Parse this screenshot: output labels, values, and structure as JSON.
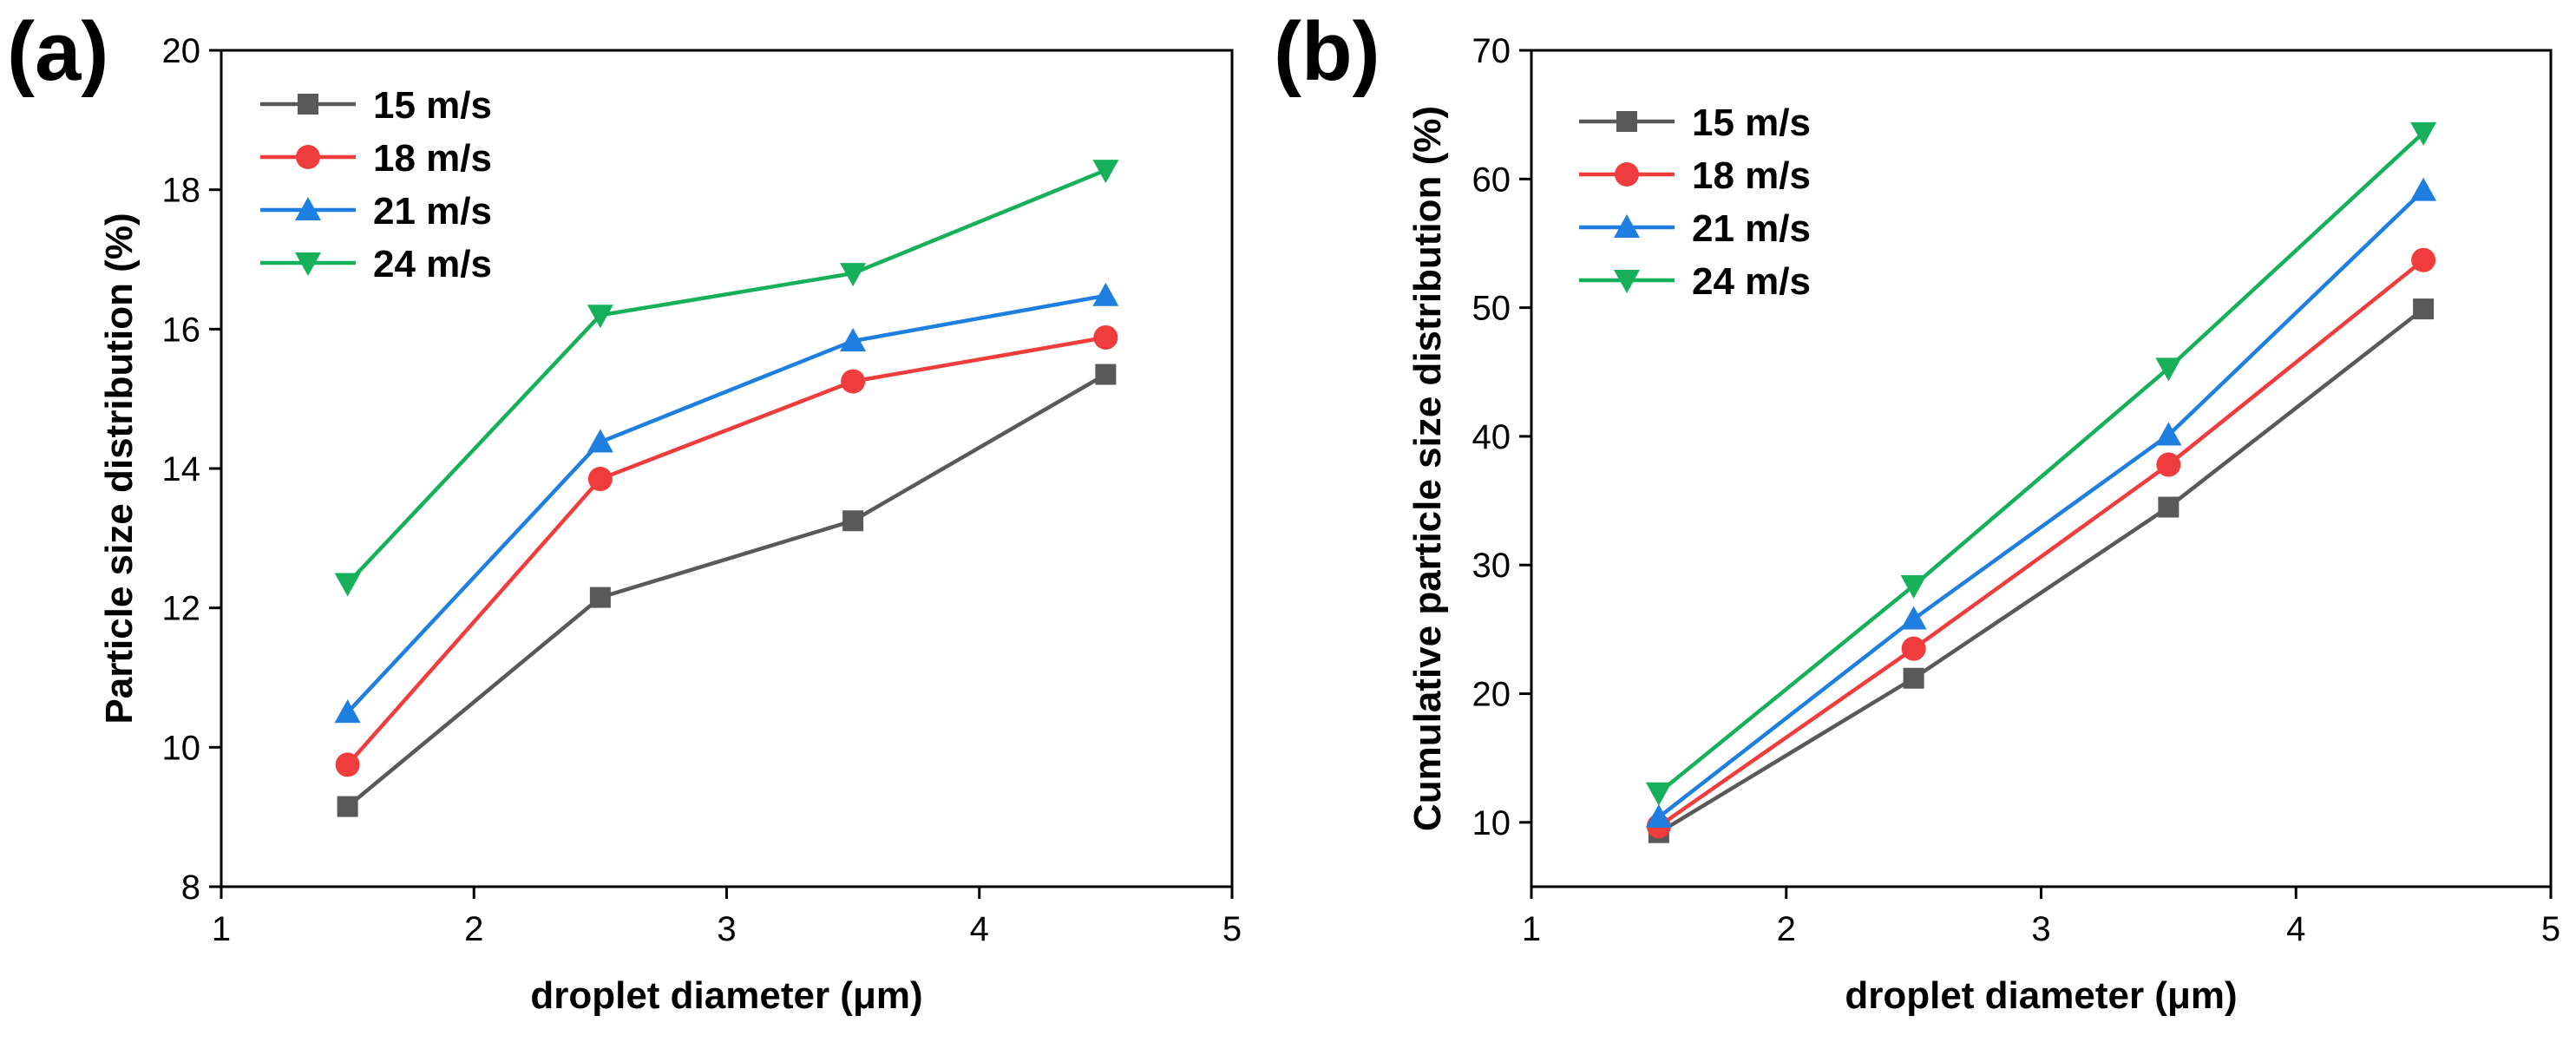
{
  "chart_data": [
    {
      "type": "line",
      "panel_label": "(a)",
      "xlabel": "droplet diameter (μm)",
      "ylabel": "Particle size distribution (%)",
      "xlim": [
        1,
        5
      ],
      "ylim": [
        8,
        20
      ],
      "xticks": [
        1,
        2,
        3,
        4,
        5
      ],
      "yticks": [
        8,
        10,
        12,
        14,
        16,
        18,
        20
      ],
      "legend_position": "top-left",
      "grid": false,
      "x": [
        1.5,
        2.5,
        3.5,
        4.5
      ],
      "series": [
        {
          "name": "15 m/s",
          "color": "#595959",
          "marker": "square",
          "values": [
            9.15,
            12.15,
            13.25,
            15.35
          ]
        },
        {
          "name": "18 m/s",
          "color": "#f03c3c",
          "marker": "circle",
          "values": [
            9.75,
            13.85,
            15.25,
            15.88
          ]
        },
        {
          "name": "21 m/s",
          "color": "#1e7fe0",
          "marker": "triangle-up",
          "values": [
            10.5,
            14.38,
            15.83,
            16.48
          ]
        },
        {
          "name": "24 m/s",
          "color": "#16b05a",
          "marker": "triangle-down",
          "values": [
            12.35,
            16.2,
            16.8,
            18.28
          ]
        }
      ]
    },
    {
      "type": "line",
      "panel_label": "(b)",
      "xlabel": "droplet diameter (μm)",
      "ylabel": "Cumulative particle size distribution (%)",
      "xlim": [
        1,
        5
      ],
      "ylim": [
        5,
        70
      ],
      "xticks": [
        1,
        2,
        3,
        4,
        5
      ],
      "yticks": [
        10,
        20,
        30,
        40,
        50,
        60,
        70
      ],
      "legend_position": "top-left",
      "grid": false,
      "x": [
        1.5,
        2.5,
        3.5,
        4.5
      ],
      "series": [
        {
          "name": "15 m/s",
          "color": "#595959",
          "marker": "square",
          "values": [
            9.2,
            21.2,
            34.5,
            49.9
          ]
        },
        {
          "name": "18 m/s",
          "color": "#f03c3c",
          "marker": "circle",
          "values": [
            9.7,
            23.5,
            37.8,
            53.7
          ]
        },
        {
          "name": "21 m/s",
          "color": "#1e7fe0",
          "marker": "triangle-up",
          "values": [
            10.4,
            25.8,
            40.1,
            59.1
          ]
        },
        {
          "name": "24 m/s",
          "color": "#16b05a",
          "marker": "triangle-down",
          "values": [
            12.3,
            28.4,
            45.3,
            63.6
          ]
        }
      ]
    }
  ]
}
